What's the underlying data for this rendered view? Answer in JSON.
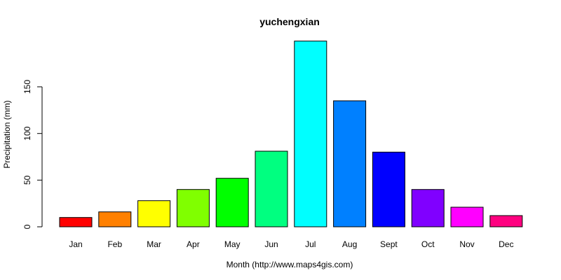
{
  "chart_data": {
    "type": "bar",
    "title": "yuchengxian",
    "xlabel": "Month (http://www.maps4gis.com)",
    "ylabel": "Precipitation (mm)",
    "categories": [
      "Jan",
      "Feb",
      "Mar",
      "Apr",
      "May",
      "Jun",
      "Jul",
      "Aug",
      "Sept",
      "Oct",
      "Nov",
      "Dec"
    ],
    "values": [
      10,
      16,
      28,
      40,
      52,
      81,
      199,
      135,
      80,
      40,
      21,
      12
    ],
    "colors": [
      "#FF0000",
      "#FF8000",
      "#FFFF00",
      "#80FF00",
      "#00FF00",
      "#00FF80",
      "#00FFFF",
      "#0080FF",
      "#0000FF",
      "#8000FF",
      "#FF00FF",
      "#FF0080"
    ],
    "yticks": [
      0,
      50,
      100,
      150
    ],
    "ylim": [
      0,
      200
    ],
    "grid": false,
    "legend": "none"
  }
}
